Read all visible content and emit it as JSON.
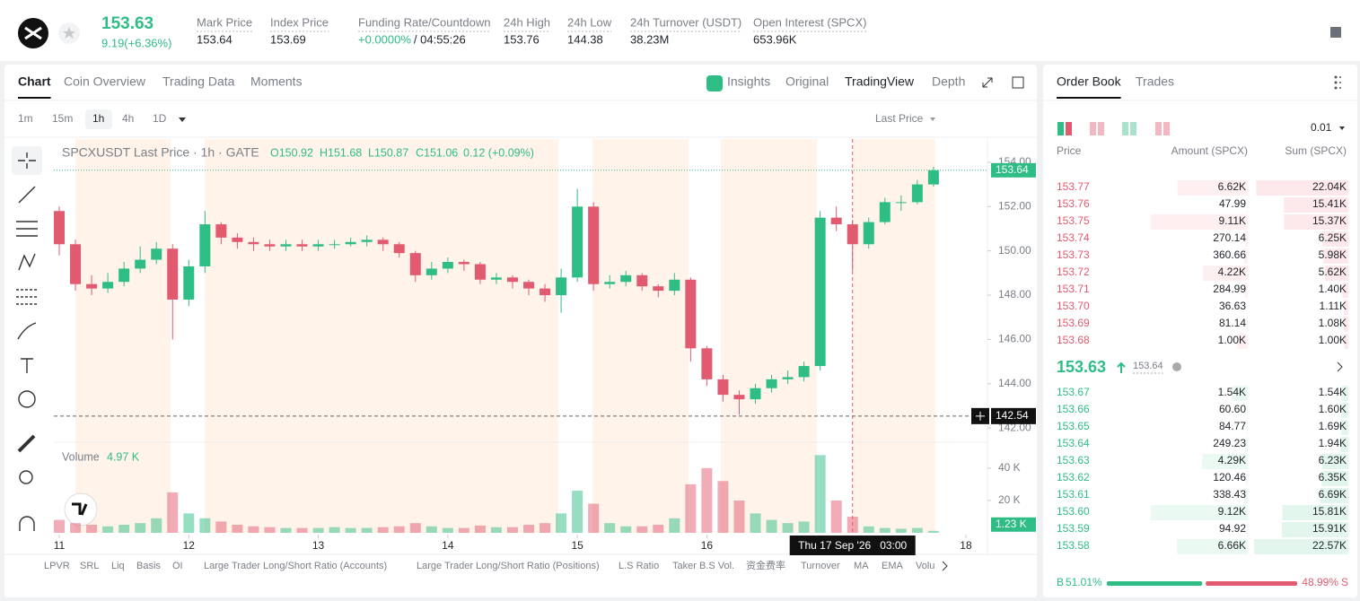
{
  "header": {
    "price": "153.63",
    "change": "9.19(+6.36%)",
    "stats": [
      {
        "label": "Mark Price",
        "value": "153.64"
      },
      {
        "label": "Index Price",
        "value": "153.69"
      },
      {
        "label": "Funding Rate/Countdown",
        "value": "+0.0000%",
        "value2": "/ 04:55:26"
      },
      {
        "label": "24h High",
        "value": "153.76"
      },
      {
        "label": "24h Low",
        "value": "144.38"
      },
      {
        "label": "24h Turnover (USDT)",
        "value": "38.23M"
      },
      {
        "label": "Open Interest (SPCX)",
        "value": "653.96K"
      }
    ]
  },
  "chart_tabs": [
    "Chart",
    "Coin Overview",
    "Trading Data",
    "Moments"
  ],
  "view_tabs": [
    "Insights",
    "Original",
    "TradingView",
    "Depth"
  ],
  "intervals": [
    "1m",
    "15m",
    "1h",
    "4h",
    "1D"
  ],
  "price_type": "Last Price",
  "chart_legend": [
    "O150.92",
    "H151.68",
    "L150.87",
    "C151.06",
    "0.12 (+0.09%)"
  ],
  "chart_data": {
    "type": "candlestick",
    "title": "SPCXUSDT Last Price · 1h · GATE",
    "x": [
      0,
      3,
      6,
      9,
      12,
      15,
      18,
      21,
      24,
      27,
      30,
      33,
      36,
      39,
      42,
      45,
      48,
      51,
      54,
      57,
      60,
      63,
      66,
      69,
      72,
      75,
      78,
      81,
      84,
      87,
      90,
      93,
      96,
      99,
      102,
      105,
      108,
      111,
      114,
      117,
      120,
      123,
      126,
      129,
      132,
      135,
      138,
      141,
      144,
      147,
      150,
      153,
      156,
      159,
      162
    ],
    "open": [
      151.8,
      150.3,
      148.5,
      148.3,
      148.6,
      149.2,
      149.6,
      150.1,
      147.8,
      149.3,
      151.2,
      150.6,
      150.4,
      150.3,
      150.2,
      150.3,
      150.2,
      150.3,
      150.3,
      150.4,
      150.5,
      150.3,
      149.9,
      148.9,
      149.2,
      149.5,
      149.4,
      148.7,
      148.8,
      148.6,
      148.3,
      148.0,
      148.8,
      152.0,
      148.5,
      148.6,
      148.9,
      148.4,
      148.2,
      148.7,
      145.6,
      144.2,
      143.5,
      143.3,
      143.8,
      144.2,
      144.3,
      144.8,
      151.5,
      151.2,
      150.3,
      151.3,
      152.2,
      152.2,
      153.0
    ],
    "high": [
      152.0,
      150.5,
      148.9,
      149.0,
      149.5,
      150.2,
      150.4,
      150.3,
      149.6,
      151.8,
      151.3,
      150.8,
      150.6,
      150.5,
      150.5,
      150.5,
      150.5,
      150.5,
      150.6,
      150.7,
      150.6,
      150.4,
      150.0,
      149.5,
      149.7,
      149.6,
      149.5,
      149.0,
      148.9,
      148.7,
      148.5,
      149.2,
      152.8,
      152.2,
      148.9,
      149.1,
      149.0,
      148.5,
      149.0,
      148.8,
      145.7,
      144.4,
      143.7,
      144.0,
      144.4,
      144.6,
      145.0,
      151.8,
      152.0,
      151.4,
      151.5,
      152.4,
      152.5,
      153.2,
      153.8
    ],
    "low": [
      149.8,
      148.2,
      148.0,
      148.1,
      148.4,
      149.0,
      149.4,
      146.0,
      147.5,
      149.0,
      150.3,
      150.1,
      150.0,
      150.0,
      150.0,
      150.0,
      150.0,
      150.1,
      150.2,
      150.2,
      150.0,
      149.7,
      148.6,
      148.7,
      149.0,
      149.1,
      148.5,
      148.5,
      148.3,
      148.0,
      147.7,
      147.2,
      148.6,
      148.2,
      148.3,
      148.4,
      148.2,
      147.9,
      148.0,
      145.0,
      143.9,
      143.2,
      142.6,
      143.1,
      143.6,
      144.0,
      144.1,
      144.6,
      150.9,
      149.1,
      150.1,
      151.2,
      151.8,
      152.1,
      152.9
    ],
    "close": [
      150.3,
      148.5,
      148.3,
      148.6,
      149.2,
      149.6,
      150.1,
      147.8,
      149.3,
      151.2,
      150.6,
      150.4,
      150.3,
      150.2,
      150.3,
      150.2,
      150.3,
      150.3,
      150.4,
      150.5,
      150.3,
      149.9,
      148.9,
      149.2,
      149.5,
      149.4,
      148.7,
      148.8,
      148.6,
      148.3,
      148.0,
      148.8,
      152.0,
      148.5,
      148.6,
      148.9,
      148.4,
      148.2,
      148.7,
      145.6,
      144.2,
      143.5,
      143.3,
      143.8,
      144.2,
      144.3,
      144.8,
      151.5,
      151.2,
      150.3,
      151.3,
      152.2,
      152.2,
      153.0,
      153.64
    ],
    "up_color": "#2ebd85",
    "down_color": "#e25a70",
    "xlim": [
      -1,
      172
    ],
    "xticks": [
      {
        "value": 0,
        "label": "11"
      },
      {
        "value": 24,
        "label": "12"
      },
      {
        "value": 48,
        "label": "13"
      },
      {
        "value": 72,
        "label": "14"
      },
      {
        "value": 96,
        "label": "15"
      },
      {
        "value": 120,
        "label": "16"
      },
      {
        "value": 168,
        "label": "18"
      }
    ],
    "ylim": [
      141.4,
      155.05
    ],
    "yticks": [
      {
        "value": 142,
        "label": "142.00"
      },
      {
        "value": 144,
        "label": "144.00"
      },
      {
        "value": 146,
        "label": "146.00"
      },
      {
        "value": 148,
        "label": "148.00"
      },
      {
        "value": 150,
        "label": "150.00"
      },
      {
        "value": 152,
        "label": "152.00"
      },
      {
        "value": 154,
        "label": "154.00"
      }
    ],
    "last_price": 153.64,
    "crosshair": {
      "x": 147,
      "y": 142.54,
      "time_label": "Thu 17 Sep '26   03:00"
    },
    "volume": {
      "name": "Volume",
      "value_label": "4.97 K",
      "last_label": "1.23 K",
      "values": [
        8000,
        6000,
        5000,
        4000,
        5000,
        6000,
        9000,
        25000,
        12000,
        9000,
        7000,
        5000,
        4000,
        3500,
        3000,
        3000,
        3000,
        3500,
        3000,
        3000,
        3500,
        4000,
        6000,
        4000,
        3000,
        3000,
        4500,
        3500,
        3500,
        5000,
        6000,
        12000,
        26000,
        18000,
        6000,
        4000,
        4000,
        5000,
        9000,
        30000,
        40000,
        32000,
        20000,
        12000,
        8000,
        6000,
        7000,
        48000,
        20000,
        10000,
        4000,
        3000,
        2500,
        3000,
        1230
      ],
      "ylim": [
        0,
        56000
      ],
      "yticks": [
        {
          "value": 20000,
          "label": "20 K"
        },
        {
          "value": 40000,
          "label": "40 K"
        }
      ]
    }
  },
  "indicators": [
    "LPVR",
    "SRL",
    "Liq",
    "Basis",
    "OI",
    "Large Trader Long/Short Ratio (Accounts)",
    "Large Trader Long/Short Ratio (Positions)",
    "L.S Ratio",
    "Taker B.S Vol.",
    "资金费率",
    "Turnover",
    "MA",
    "EMA",
    "Volu"
  ],
  "order_book": {
    "tabs": [
      "Order Book",
      "Trades"
    ],
    "precision": "0.01",
    "columns": [
      "Price",
      "Amount (SPCX)",
      "Sum (SPCX)"
    ],
    "asks": [
      [
        "153.77",
        "6.62K",
        "22.04K"
      ],
      [
        "153.76",
        "47.99",
        "15.41K"
      ],
      [
        "153.75",
        "9.11K",
        "15.37K"
      ],
      [
        "153.74",
        "270.14",
        "6.25K"
      ],
      [
        "153.73",
        "360.66",
        "5.98K"
      ],
      [
        "153.72",
        "4.22K",
        "5.62K"
      ],
      [
        "153.71",
        "284.99",
        "1.40K"
      ],
      [
        "153.70",
        "36.63",
        "1.11K"
      ],
      [
        "153.69",
        "81.14",
        "1.08K"
      ],
      [
        "153.68",
        "1.00K",
        "1.00K"
      ]
    ],
    "last": "153.63",
    "mark": "153.64",
    "bids": [
      [
        "153.67",
        "1.54K",
        "1.54K"
      ],
      [
        "153.66",
        "60.60",
        "1.60K"
      ],
      [
        "153.65",
        "84.77",
        "1.69K"
      ],
      [
        "153.64",
        "249.23",
        "1.94K"
      ],
      [
        "153.63",
        "4.29K",
        "6.23K"
      ],
      [
        "153.62",
        "120.46",
        "6.35K"
      ],
      [
        "153.61",
        "338.43",
        "6.69K"
      ],
      [
        "153.60",
        "9.12K",
        "15.81K"
      ],
      [
        "153.59",
        "94.92",
        "15.91K"
      ],
      [
        "153.58",
        "6.66K",
        "22.57K"
      ]
    ],
    "buy_label": "B",
    "buy": "51.01%",
    "sell": "48.99%",
    "sell_label": "S"
  }
}
